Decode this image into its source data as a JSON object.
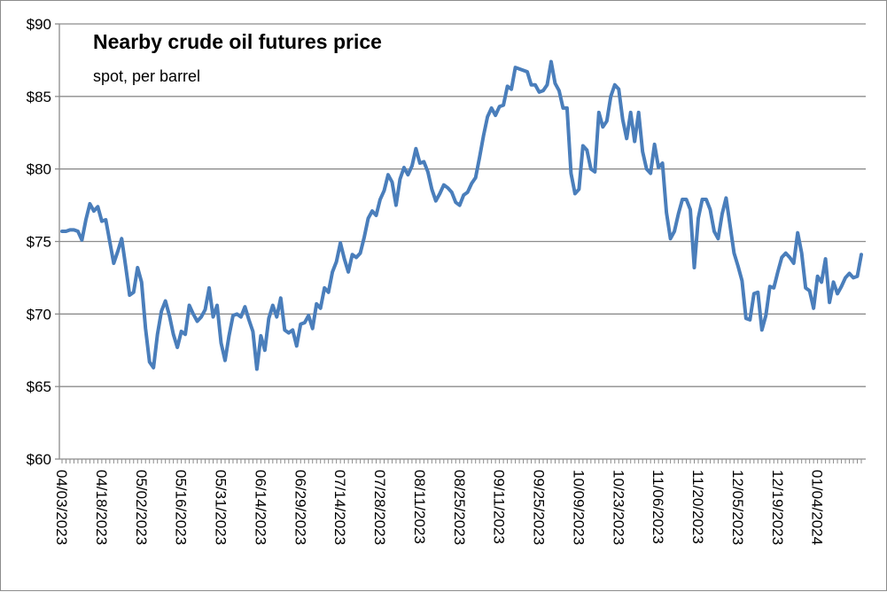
{
  "chart_data": {
    "type": "line",
    "title": "Nearby crude oil futures price",
    "subtitle": "spot, per barrel",
    "xlabel": "",
    "ylabel": "",
    "ylim": [
      60,
      90
    ],
    "y_ticks": [
      "$60",
      "$65",
      "$70",
      "$75",
      "$80",
      "$85",
      "$90"
    ],
    "y_tick_values": [
      60,
      65,
      70,
      75,
      80,
      85,
      90
    ],
    "x_ticks": [
      "04/03/2023",
      "04/18/2023",
      "05/02/2023",
      "05/16/2023",
      "05/31/2023",
      "06/14/2023",
      "06/29/2023",
      "07/14/2023",
      "07/28/2023",
      "08/11/2023",
      "08/25/2023",
      "09/11/2023",
      "09/25/2023",
      "10/09/2023",
      "10/23/2023",
      "11/06/2023",
      "11/20/2023",
      "12/05/2023",
      "12/19/2023",
      "01/04/2024"
    ],
    "x_tick_index": [
      0,
      10,
      20,
      30,
      40,
      50,
      60,
      70,
      80,
      90,
      100,
      110,
      120,
      130,
      140,
      150,
      160,
      170,
      180,
      190
    ],
    "grid": true,
    "legend": "none",
    "line_color": "#4a7ebb",
    "series": [
      {
        "values": [
          75.7,
          75.7,
          75.8,
          75.8,
          75.7,
          75.1,
          76.5,
          77.6,
          77.1,
          77.4,
          76.4,
          76.5,
          75.0,
          73.5,
          74.3,
          75.2,
          73.3,
          71.3,
          71.5,
          73.2,
          72.2,
          69.0,
          66.7,
          66.3,
          68.6,
          70.2,
          70.9,
          69.9,
          68.6,
          67.7,
          68.8,
          68.6,
          70.6,
          70.0,
          69.5,
          69.8,
          70.3,
          71.8,
          69.8,
          70.6,
          68.0,
          66.8,
          68.5,
          69.9,
          70.0,
          69.8,
          70.5,
          69.6,
          68.8,
          66.2,
          68.5,
          67.5,
          69.7,
          70.6,
          69.8,
          71.1,
          68.9,
          68.7,
          68.9,
          67.8,
          69.3,
          69.4,
          69.9,
          69.0,
          70.7,
          70.4,
          71.8,
          71.5,
          72.9,
          73.6,
          74.9,
          73.8,
          72.9,
          74.1,
          73.9,
          74.2,
          75.3,
          76.6,
          77.1,
          76.8,
          77.9,
          78.5,
          79.6,
          79.1,
          77.5,
          79.3,
          80.1,
          79.6,
          80.2,
          81.4,
          80.4,
          80.5,
          79.8,
          78.6,
          77.8,
          78.3,
          78.9,
          78.7,
          78.4,
          77.7,
          77.5,
          78.2,
          78.4,
          79.0,
          79.4,
          80.8,
          82.3,
          83.6,
          84.2,
          83.7,
          84.3,
          84.4,
          85.7,
          85.5,
          87.0,
          86.9,
          86.8,
          86.7,
          85.8,
          85.8,
          85.3,
          85.4,
          85.8,
          87.4,
          85.9,
          85.4,
          84.2,
          84.2,
          79.7,
          78.3,
          78.6,
          81.6,
          81.3,
          80.0,
          79.8,
          83.9,
          82.9,
          83.3,
          85.0,
          85.8,
          85.5,
          83.4,
          82.1,
          83.9,
          81.9,
          83.9,
          81.2,
          80.0,
          79.7,
          81.7,
          80.1,
          80.4,
          77.0,
          75.2,
          75.7,
          76.9,
          77.9,
          77.9,
          77.2,
          73.2,
          76.6,
          77.9,
          77.9,
          77.2,
          75.7,
          75.2,
          76.9,
          78.0,
          76.1,
          74.2,
          73.3,
          72.3,
          69.7,
          69.6,
          71.4,
          71.5,
          68.9,
          69.9,
          71.9,
          71.8,
          72.9,
          73.9,
          74.2,
          73.9,
          73.5,
          75.6,
          74.2,
          71.8,
          71.6,
          70.4,
          72.6,
          72.2,
          73.8,
          70.8,
          72.2,
          71.4,
          71.9,
          72.5,
          72.8,
          72.5,
          72.6,
          74.1
        ]
      }
    ]
  }
}
